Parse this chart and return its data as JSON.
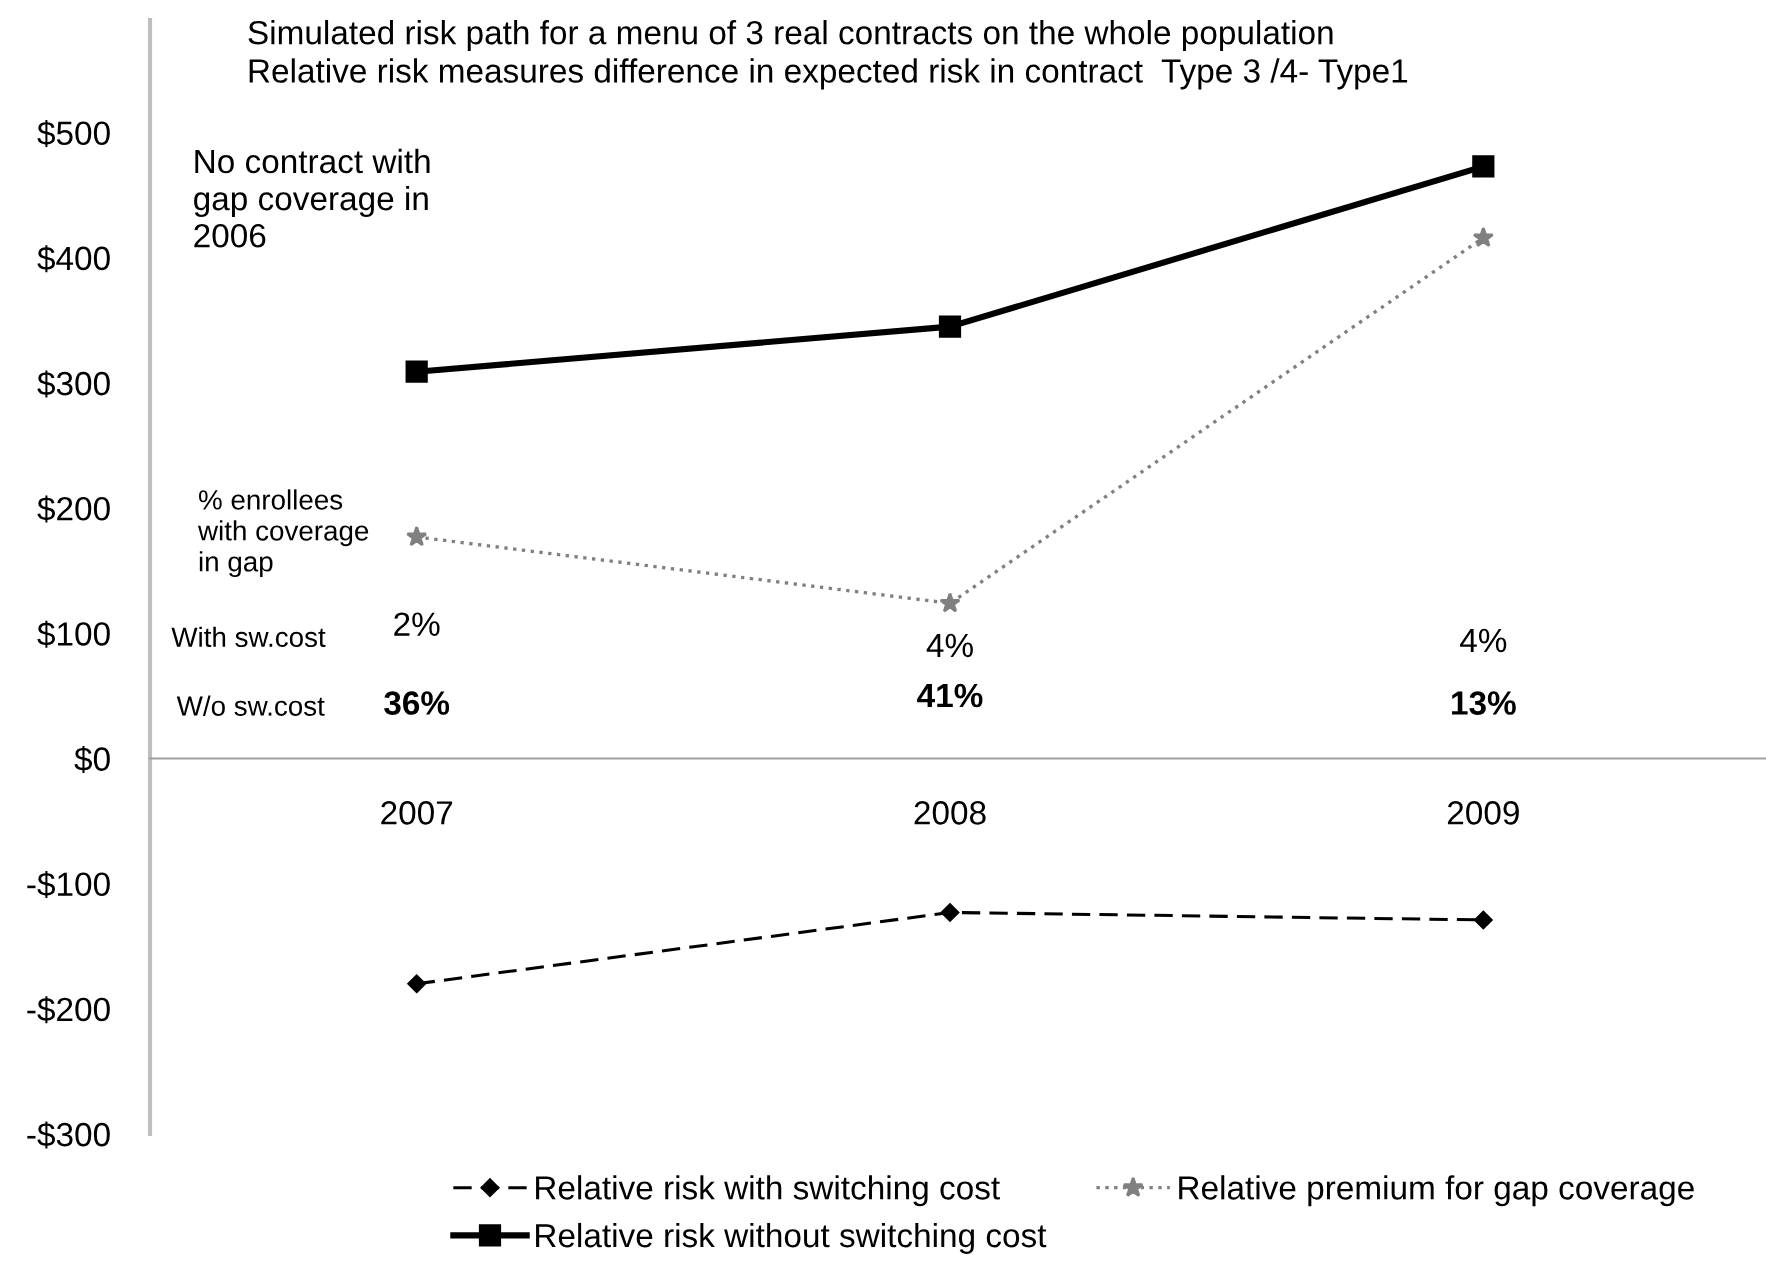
{
  "chart_data": {
    "type": "line",
    "title": "Simulated risk path for a menu of 3 real contracts on the whole population\nRelative risk measures difference in expected risk in contract  Type 3 /4- Type1",
    "categories": [
      "2007",
      "2008",
      "2009"
    ],
    "series": [
      {
        "name": "Relative risk with switching cost",
        "color": "#000000",
        "values": [
          -180,
          -123,
          -129
        ],
        "marker": "diamond",
        "line_style": "dashed"
      },
      {
        "name": "Relative risk without switching cost",
        "color": "#000000",
        "values": [
          309,
          345,
          473
        ],
        "marker": "square",
        "line_style": "solid"
      },
      {
        "name": "Relative premium for gap coverage",
        "color": "#808080",
        "values": [
          177,
          124,
          416
        ],
        "marker": "star",
        "line_style": "dotted"
      }
    ],
    "ylim": [
      -300,
      590
    ],
    "yticks": [
      {
        "value": -300,
        "label": "-$300"
      },
      {
        "value": -200,
        "label": "-$200"
      },
      {
        "value": -100,
        "label": "-$100"
      },
      {
        "value": 0,
        "label": "$0"
      },
      {
        "value": 100,
        "label": "$100"
      },
      {
        "value": 200,
        "label": "$200"
      },
      {
        "value": 300,
        "label": "$300"
      },
      {
        "value": 400,
        "label": "$400"
      },
      {
        "value": 500,
        "label": "$500"
      }
    ],
    "grid": false,
    "legend": "bottom",
    "annotations": [
      "No contract with\ngap coverage in\n2006",
      "% enrollees\nwith coverage\nin gap",
      "With sw.cost",
      "W/o sw.cost",
      "2%",
      "4%",
      "4%",
      "36%",
      "41%",
      "13%"
    ]
  }
}
